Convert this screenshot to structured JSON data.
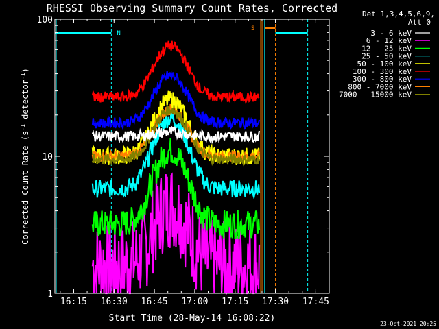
{
  "chart_data": {
    "type": "line",
    "title": "RHESSI Observing Summary Count Rates, Corrected",
    "xlabel": "Start Time (28-May-14 16:08:22)",
    "ylabel": "Corrected Count Rate (s",
    "ylabel_sup1": "-1",
    "ylabel_mid": " detector",
    "ylabel_sup2": "-1",
    "ylabel_end": ")",
    "timestamp": "23-Oct-2021 20:25",
    "y_scale": "log",
    "ylim": [
      1,
      100
    ],
    "xlim_minutes": [
      "16:08",
      "17:50"
    ],
    "x_ticks": [
      "16:15",
      "16:30",
      "16:45",
      "17:00",
      "17:15",
      "17:30",
      "17:45"
    ],
    "y_ticks": [
      "1",
      "10",
      "100"
    ],
    "legend_header": [
      "Det 1,3,4,5,6,9,",
      "Att 0"
    ],
    "legend_position": "top-right",
    "flag_labels": {
      "night": "N",
      "saa": "S"
    },
    "data_start": "16:22",
    "data_end": "17:24",
    "series": [
      {
        "name": "3 - 6 keV",
        "color": "#ffffff",
        "base": 14.0,
        "peak": 15.0,
        "noise": 0.03
      },
      {
        "name": "6 - 12 keV",
        "color": "#ff00ff",
        "base": 1.6,
        "peak": 4.4,
        "noise": 0.25
      },
      {
        "name": "12 - 25 keV",
        "color": "#00ff00",
        "base": 3.2,
        "peak": 11.0,
        "noise": 0.08
      },
      {
        "name": "25 - 50 keV",
        "color": "#00ffff",
        "base": 5.8,
        "peak": 19.0,
        "noise": 0.05
      },
      {
        "name": "50 - 100 keV",
        "color": "#ffff00",
        "base": 10.0,
        "peak": 26.0,
        "noise": 0.05
      },
      {
        "name": "100 - 300 keV",
        "color": "#ff0000",
        "base": 27.0,
        "peak": 64.0,
        "noise": 0.03
      },
      {
        "name": "300 - 800 keV",
        "color": "#0000ff",
        "base": 17.5,
        "peak": 39.0,
        "noise": 0.03
      },
      {
        "name": "800 - 7000 keV",
        "color": "#ff8000",
        "base": 10.0,
        "peak": 22.0,
        "noise": 0.03
      },
      {
        "name": "7000 - 15000 keV",
        "color": "#808000",
        "base": 9.5,
        "peak": 22.0,
        "noise": 0.03
      }
    ]
  }
}
